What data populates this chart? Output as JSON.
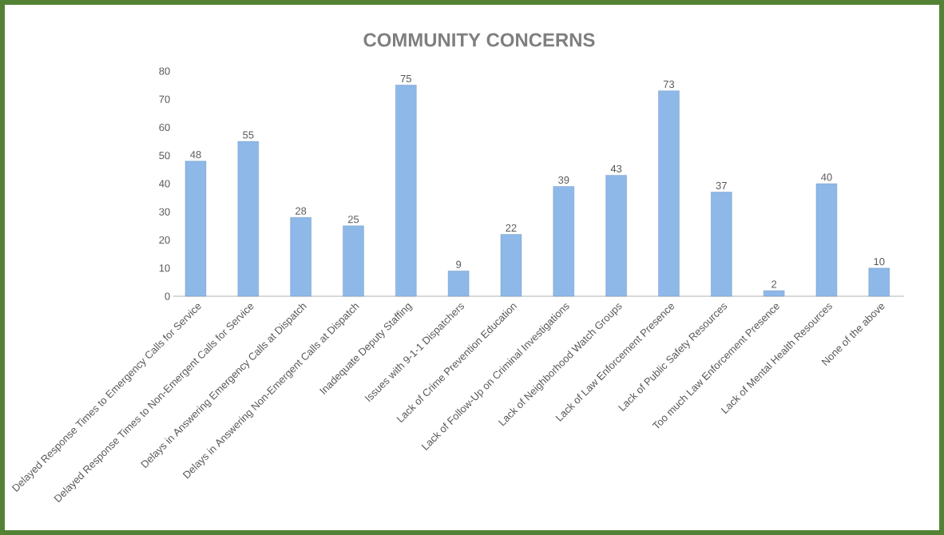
{
  "chart_data": {
    "type": "bar",
    "title": "COMMUNITY CONCERNS",
    "categories": [
      "Delayed Response Times to Emergency Calls for Service",
      "Delayed Response Times to Non-Emergent Calls for Service",
      "Delays in Answering Emergency Calls at Dispatch",
      "Delays in Answering Non-Emergent Calls at Dispatch",
      "Inadequate Deputy Staffing",
      "Issues with 9-1-1 Dispatchers",
      "Lack of Crime Prevention Education",
      "Lack of Follow-Up on Criminal Investigations",
      "Lack of Neighborhood Watch Groups",
      "Lack of Law Enforcement Presence",
      "Lack of Public Safety Resources",
      "Too much Law Enforcement Presence",
      "Lack of Mental Health Resources",
      "None of the above"
    ],
    "values": [
      48,
      55,
      28,
      25,
      75,
      9,
      22,
      39,
      43,
      73,
      37,
      2,
      40,
      10
    ],
    "color": "#8db8e8",
    "ylim": [
      0,
      80
    ],
    "yticks": [
      0,
      10,
      20,
      30,
      40,
      50,
      60,
      70,
      80
    ],
    "data_labels": true
  }
}
